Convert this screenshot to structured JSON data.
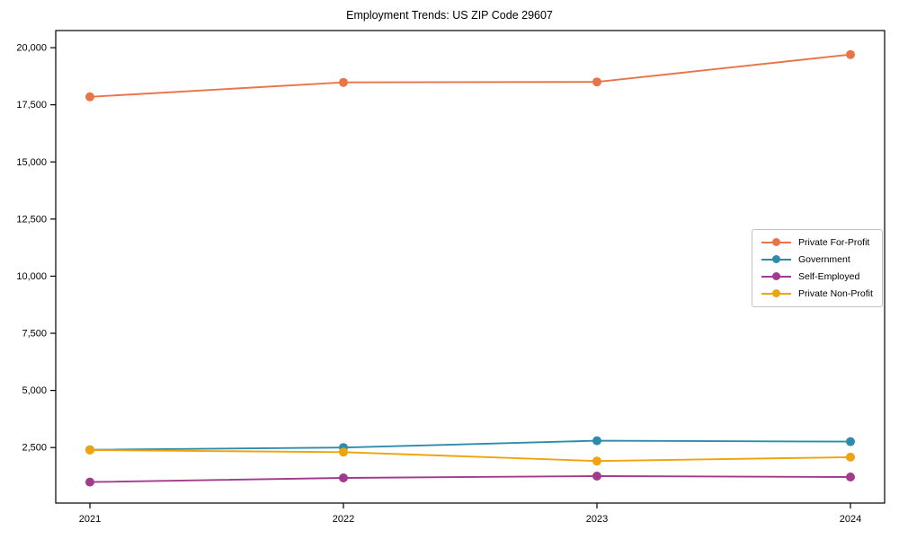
{
  "chart_data": {
    "type": "line",
    "title": "Employment Trends: US ZIP Code 29607",
    "xlabel": "",
    "ylabel": "",
    "x": [
      "2021",
      "2022",
      "2023",
      "2024"
    ],
    "yticks": [
      2500,
      5000,
      7500,
      10000,
      12500,
      15000,
      17500,
      20000
    ],
    "ylim": [
      70,
      20750
    ],
    "grid": false,
    "legend_position": "center-right",
    "background_color": "#ffffff",
    "axis_color": "#000000",
    "series": [
      {
        "name": "Private For-Profit",
        "color": "#e8754a",
        "values": [
          17850,
          18480,
          18500,
          19700
        ]
      },
      {
        "name": "Government",
        "color": "#2e8bab",
        "values": [
          2400,
          2500,
          2800,
          2760
        ]
      },
      {
        "name": "Self-Employed",
        "color": "#a23a8e",
        "values": [
          990,
          1170,
          1250,
          1210
        ]
      },
      {
        "name": "Private Non-Profit",
        "color": "#f0a30a",
        "values": [
          2390,
          2300,
          1910,
          2080
        ]
      }
    ]
  }
}
